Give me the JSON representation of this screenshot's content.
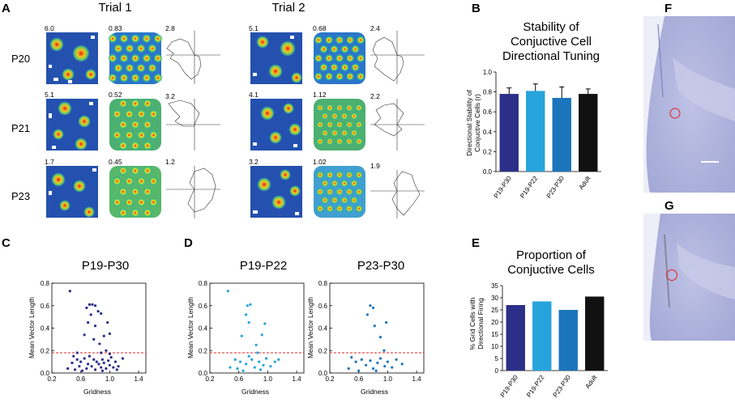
{
  "figure": {
    "panel_labels": [
      "A",
      "B",
      "C",
      "D",
      "E",
      "F",
      "G"
    ],
    "panel_a": {
      "trial_titles": [
        "Trial 1",
        "Trial 2"
      ],
      "rows": [
        {
          "label": "P20",
          "trial1": [
            "6.0",
            "0.83",
            "2.8"
          ],
          "trial2": [
            "5.1",
            "0.68",
            "2.4"
          ]
        },
        {
          "label": "P21",
          "trial1": [
            "5.1",
            "0.52",
            "3.2"
          ],
          "trial2": [
            "4.1",
            "1.12",
            "2.2"
          ]
        },
        {
          "label": "P23",
          "trial1": [
            "1.7",
            "0.45",
            "1.2"
          ],
          "trial2": [
            "3.2",
            "1.02",
            "1.9"
          ]
        }
      ]
    },
    "colors": {
      "navy": "#2b2f87",
      "sky": "#27a3dc",
      "mid": "#1b75bc",
      "black": "#111111",
      "dash": "#e02424",
      "histo": "#a7acd6"
    }
  },
  "chart_data": [
    {
      "id": "B",
      "type": "bar",
      "title": "Stability of Conjuctive Cell Directional Tuning",
      "title_lines": [
        "Stability of",
        "Conjuctive Cell",
        "Directional Tuning"
      ],
      "ylabel_lines": [
        "Directional Stability of",
        "Conjuctive Cells (r)"
      ],
      "categories": [
        "P19-P30",
        "P19-P22",
        "P23-P30",
        "Adult"
      ],
      "values": [
        0.78,
        0.81,
        0.74,
        0.78
      ],
      "errors": [
        0.06,
        0.07,
        0.11,
        0.05
      ],
      "ylim": [
        0,
        1.0
      ],
      "yticks": [
        "0.0",
        "0.2",
        "0.4",
        "0.6",
        "0.8",
        "1.0"
      ]
    },
    {
      "id": "E",
      "type": "bar",
      "title": "Proportion of Conjuctive Cells",
      "title_lines": [
        "Proportion of",
        "Conjuctive Cells"
      ],
      "ylabel_lines": [
        "% Grid Cells with",
        "Directional Firing"
      ],
      "categories": [
        "P19-P30",
        "P19-P22",
        "P23-P30",
        "Adult"
      ],
      "values": [
        27,
        28.5,
        25,
        30.5
      ],
      "ylim": [
        0,
        35
      ],
      "yticks": [
        "0",
        "5",
        "10",
        "15",
        "20",
        "25",
        "30",
        "35"
      ]
    },
    {
      "id": "C",
      "type": "scatter",
      "title": "P19-P30",
      "xlabel": "Gridness",
      "ylabel": "Mean Vector Length",
      "xlim": [
        0.2,
        1.5
      ],
      "ylim": [
        0,
        0.8
      ],
      "xticks": [
        "0.2",
        "0.6",
        "1.0",
        "1.4"
      ],
      "yticks": [
        "0.0",
        "0.2",
        "0.4",
        "0.6",
        "0.8"
      ],
      "threshold": 0.18,
      "points": [
        [
          0.45,
          0.73
        ],
        [
          0.68,
          0.58
        ],
        [
          0.72,
          0.61
        ],
        [
          0.76,
          0.61
        ],
        [
          0.8,
          0.6
        ],
        [
          0.84,
          0.55
        ],
        [
          0.74,
          0.52
        ],
        [
          0.88,
          0.53
        ],
        [
          0.7,
          0.45
        ],
        [
          0.8,
          0.42
        ],
        [
          0.97,
          0.45
        ],
        [
          1.0,
          0.35
        ],
        [
          0.92,
          0.33
        ],
        [
          0.86,
          0.26
        ],
        [
          0.78,
          0.3
        ],
        [
          0.65,
          0.34
        ],
        [
          0.88,
          0.18
        ],
        [
          0.95,
          0.2
        ],
        [
          0.5,
          0.15
        ],
        [
          0.55,
          0.12
        ],
        [
          0.6,
          0.1
        ],
        [
          0.65,
          0.13
        ],
        [
          0.7,
          0.08
        ],
        [
          0.72,
          0.15
        ],
        [
          0.75,
          0.06
        ],
        [
          0.78,
          0.12
        ],
        [
          0.8,
          0.03
        ],
        [
          0.82,
          0.1
        ],
        [
          0.85,
          0.08
        ],
        [
          0.88,
          0.05
        ],
        [
          0.9,
          0.12
        ],
        [
          0.92,
          0.09
        ],
        [
          0.95,
          0.04
        ],
        [
          0.98,
          0.11
        ],
        [
          1.0,
          0.07
        ],
        [
          1.02,
          0.14
        ],
        [
          1.05,
          0.05
        ],
        [
          1.08,
          0.1
        ],
        [
          1.12,
          0.06
        ],
        [
          1.18,
          0.13
        ],
        [
          0.42,
          0.04
        ],
        [
          0.48,
          0.09
        ],
        [
          0.52,
          0.03
        ],
        [
          0.58,
          0.06
        ],
        [
          0.62,
          0.02
        ],
        [
          0.68,
          0.04
        ],
        [
          0.9,
          0.02
        ],
        [
          1.1,
          0.03
        ],
        [
          0.55,
          0.18
        ],
        [
          1.0,
          0.17
        ]
      ]
    },
    {
      "id": "D1",
      "type": "scatter",
      "title": "P19-P22",
      "xlabel": "Gridness",
      "ylabel": "Mean Vector Length",
      "xlim": [
        0.2,
        1.5
      ],
      "ylim": [
        0,
        0.8
      ],
      "xticks": [
        "0.2",
        "0.6",
        "1.0",
        "1.4"
      ],
      "yticks": [
        "0.0",
        "0.2",
        "0.4",
        "0.6",
        "0.8"
      ],
      "threshold": 0.18,
      "points": [
        [
          0.45,
          0.73
        ],
        [
          0.72,
          0.6
        ],
        [
          0.76,
          0.61
        ],
        [
          0.7,
          0.52
        ],
        [
          0.74,
          0.45
        ],
        [
          0.96,
          0.44
        ],
        [
          0.92,
          0.34
        ],
        [
          0.84,
          0.25
        ],
        [
          0.64,
          0.33
        ],
        [
          0.86,
          0.18
        ],
        [
          0.55,
          0.12
        ],
        [
          0.62,
          0.1
        ],
        [
          0.7,
          0.08
        ],
        [
          0.74,
          0.15
        ],
        [
          0.78,
          0.12
        ],
        [
          0.82,
          0.05
        ],
        [
          0.88,
          0.1
        ],
        [
          0.94,
          0.07
        ],
        [
          0.98,
          0.13
        ],
        [
          1.04,
          0.06
        ],
        [
          1.1,
          0.1
        ],
        [
          0.48,
          0.05
        ],
        [
          0.58,
          0.04
        ],
        [
          0.66,
          0.02
        ],
        [
          0.9,
          0.03
        ],
        [
          1.15,
          0.12
        ]
      ]
    },
    {
      "id": "D2",
      "type": "scatter",
      "title": "P23-P30",
      "xlabel": "Gridness",
      "ylabel": "Mean Vector Length",
      "xlim": [
        0.2,
        1.5
      ],
      "ylim": [
        0,
        0.8
      ],
      "xticks": [
        "0.2",
        "0.6",
        "1.0",
        "1.4"
      ],
      "yticks": [
        "0.0",
        "0.2",
        "0.4",
        "0.6",
        "0.8"
      ],
      "threshold": 0.18,
      "points": [
        [
          0.76,
          0.6
        ],
        [
          0.8,
          0.58
        ],
        [
          0.72,
          0.52
        ],
        [
          0.98,
          0.45
        ],
        [
          0.82,
          0.42
        ],
        [
          0.9,
          0.32
        ],
        [
          0.95,
          0.2
        ],
        [
          0.5,
          0.14
        ],
        [
          0.56,
          0.1
        ],
        [
          0.64,
          0.12
        ],
        [
          0.7,
          0.07
        ],
        [
          0.76,
          0.11
        ],
        [
          0.8,
          0.04
        ],
        [
          0.86,
          0.09
        ],
        [
          0.9,
          0.13
        ],
        [
          0.96,
          0.06
        ],
        [
          1.0,
          0.1
        ],
        [
          1.06,
          0.05
        ],
        [
          1.12,
          0.12
        ],
        [
          0.46,
          0.04
        ],
        [
          0.6,
          0.02
        ],
        [
          0.84,
          0.02
        ],
        [
          1.2,
          0.08
        ]
      ]
    }
  ]
}
